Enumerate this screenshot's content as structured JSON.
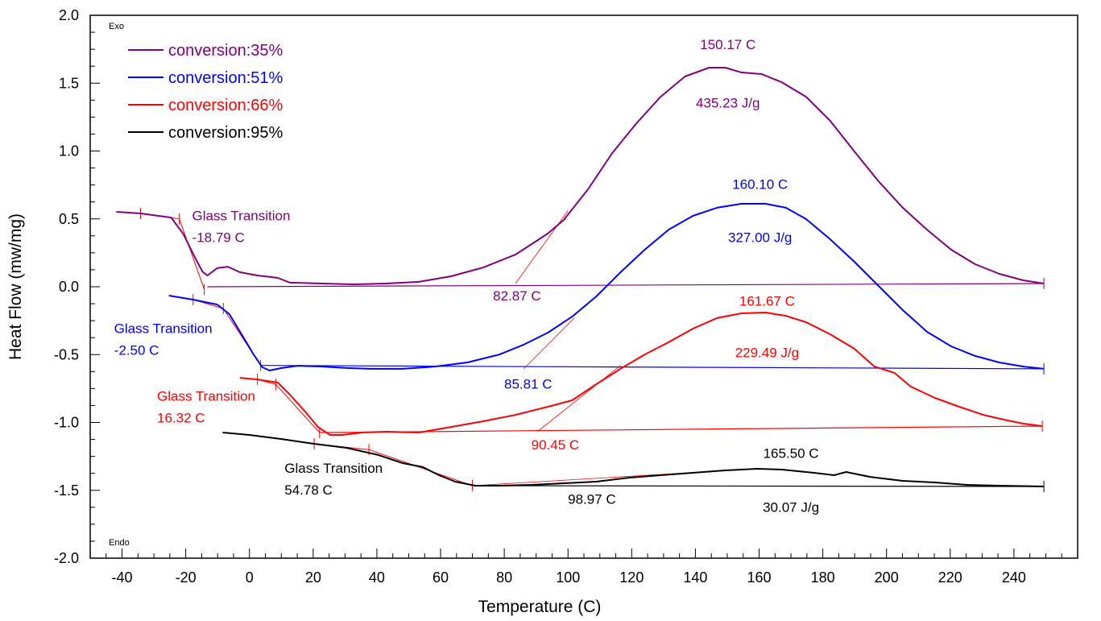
{
  "chart_data": {
    "type": "line",
    "title": "",
    "xlabel": "Temperature (C)",
    "ylabel": "Heat Flow (mw/mg)",
    "xlim": [
      -50,
      260
    ],
    "ylim": [
      -2.0,
      2.0
    ],
    "x_ticks": [
      -40,
      -20,
      0,
      20,
      40,
      60,
      80,
      100,
      120,
      140,
      160,
      180,
      200,
      220,
      240
    ],
    "x_tick_labels": [
      "-40",
      "-20",
      "0",
      "20",
      "40",
      "60",
      "80",
      "100",
      "120",
      "140",
      "160",
      "180",
      "200",
      "220",
      "240"
    ],
    "x_minor_step": 5,
    "y_ticks": [
      2.0,
      1.5,
      1.0,
      0.5,
      0.0,
      -0.5,
      -1.0,
      -1.5,
      -2.0
    ],
    "y_tick_labels": [
      "2.0",
      "1.5",
      "1.0",
      "0.5",
      "0.0",
      "-0.5",
      "-1.0",
      "-1.5",
      "-2.0"
    ],
    "y_minor_step": 0.125,
    "grid": false,
    "corner_notes": {
      "top": "Exo",
      "bottom": "Endo"
    },
    "legend": {
      "placement": "top-left",
      "entries": [
        {
          "label": "conversion:35%",
          "color": "#800080"
        },
        {
          "label": "conversion:51%",
          "color": "#0000ff"
        },
        {
          "label": "conversion:66%",
          "color": "#ff0000"
        },
        {
          "label": "conversion:95%",
          "color": "#000000"
        }
      ]
    },
    "series": [
      {
        "name": "conversion:35%",
        "color": "#800080",
        "x": [
          -41.8,
          -34.2,
          -24.6,
          -20.8,
          -17.0,
          -14.7,
          -13.2,
          -10.1,
          -6.8,
          -3.0,
          2.5,
          8.9,
          12.7,
          22.8,
          32.9,
          43.0,
          53.2,
          63.3,
          73.4,
          83.5,
          93.7,
          98.7,
          106.3,
          113.9,
          121.5,
          129.1,
          136.7,
          144.3,
          149.4,
          154.4,
          160.8,
          167.1,
          174.7,
          182.3,
          189.9,
          197.5,
          205.1,
          212.7,
          220.3,
          227.8,
          235.4,
          243.0,
          249.4
        ],
        "y": [
          0.552,
          0.54,
          0.51,
          0.39,
          0.21,
          0.11,
          0.083,
          0.137,
          0.148,
          0.107,
          0.083,
          0.065,
          0.03,
          0.024,
          0.018,
          0.024,
          0.036,
          0.077,
          0.142,
          0.237,
          0.392,
          0.493,
          0.718,
          0.985,
          1.205,
          1.4,
          1.549,
          1.614,
          1.614,
          1.579,
          1.567,
          1.507,
          1.4,
          1.223,
          0.997,
          0.777,
          0.582,
          0.421,
          0.273,
          0.166,
          0.095,
          0.047,
          0.024
        ],
        "baseline": {
          "x": [
            -13.2,
            249.4
          ],
          "y": [
            0.0,
            0.024
          ]
        },
        "onset_tangent": {
          "x": [
            83.5,
            100.0
          ],
          "y": [
            0.024,
            0.56
          ]
        },
        "tg_tangents": {
          "x": [
            -34.2,
            -22.0,
            -14.2
          ],
          "y": [
            0.54,
            0.5,
            -0.02
          ]
        },
        "annotations": [
          {
            "text": "Glass Transition",
            "x": -18.0,
            "y": 0.49,
            "anchor": "start"
          },
          {
            "text": "-18.79 C",
            "x": -18.0,
            "y": 0.33,
            "anchor": "start"
          },
          {
            "text": "82.87 C",
            "x": 84.0,
            "y": -0.1,
            "anchor": "middle"
          },
          {
            "text": "150.17 C",
            "x": 150.2,
            "y": 1.75,
            "anchor": "middle"
          },
          {
            "text": "435.23 J/g",
            "x": 150.2,
            "y": 1.32,
            "anchor": "middle"
          }
        ]
      },
      {
        "name": "conversion:51%",
        "color": "#0000ff",
        "x": [
          -25.3,
          -17.7,
          -10.1,
          -6.3,
          -2.5,
          1.3,
          4.0,
          6.3,
          10.1,
          15.2,
          22.8,
          30.4,
          38.0,
          48.1,
          58.2,
          68.4,
          78.5,
          86.1,
          93.7,
          101.3,
          108.9,
          116.5,
          124.1,
          131.6,
          139.2,
          146.8,
          154.4,
          162.0,
          168.4,
          174.7,
          182.3,
          189.9,
          197.5,
          205.1,
          212.7,
          220.3,
          227.8,
          235.4,
          243.0,
          249.4
        ],
        "y": [
          -0.065,
          -0.095,
          -0.131,
          -0.202,
          -0.35,
          -0.499,
          -0.593,
          -0.617,
          -0.599,
          -0.582,
          -0.588,
          -0.599,
          -0.605,
          -0.605,
          -0.588,
          -0.558,
          -0.499,
          -0.427,
          -0.338,
          -0.22,
          -0.071,
          0.107,
          0.273,
          0.421,
          0.522,
          0.582,
          0.611,
          0.611,
          0.582,
          0.499,
          0.35,
          0.184,
          0.006,
          -0.172,
          -0.332,
          -0.439,
          -0.51,
          -0.558,
          -0.588,
          -0.605
        ],
        "baseline": {
          "x": [
            3.5,
            249.4
          ],
          "y": [
            -0.58,
            -0.605
          ]
        },
        "onset_tangent": {
          "x": [
            86.1,
            102.0
          ],
          "y": [
            -0.605,
            -0.23
          ]
        },
        "tg_tangents": {
          "x": [
            -17.7,
            -8.2,
            3.5
          ],
          "y": [
            -0.095,
            -0.16,
            -0.58
          ]
        },
        "annotations": [
          {
            "text": "Glass Transition",
            "x": -42.5,
            "y": -0.34,
            "anchor": "start"
          },
          {
            "text": "-2.50 C",
            "x": -42.5,
            "y": -0.5,
            "anchor": "start"
          },
          {
            "text": "85.81 C",
            "x": 87.5,
            "y": -0.75,
            "anchor": "middle"
          },
          {
            "text": "160.10 C",
            "x": 160.3,
            "y": 0.72,
            "anchor": "middle"
          },
          {
            "text": "327.00 J/g",
            "x": 160.3,
            "y": 0.33,
            "anchor": "middle"
          }
        ]
      },
      {
        "name": "conversion:66%",
        "color": "#ff0000",
        "x": [
          -3.0,
          2.5,
          8.9,
          12.7,
          17.7,
          21.5,
          25.3,
          29.1,
          35.4,
          43.0,
          53.2,
          63.3,
          73.4,
          83.5,
          93.7,
          101.3,
          108.9,
          116.5,
          124.1,
          131.6,
          139.2,
          146.8,
          154.4,
          162.0,
          168.4,
          174.7,
          182.3,
          189.9,
          196.2,
          202.5,
          207.6,
          215.2,
          222.8,
          230.4,
          238.0,
          243.0,
          248.9
        ],
        "y": [
          -0.671,
          -0.683,
          -0.706,
          -0.795,
          -0.926,
          -1.033,
          -1.092,
          -1.092,
          -1.074,
          -1.068,
          -1.074,
          -1.033,
          -0.991,
          -0.944,
          -0.884,
          -0.837,
          -0.718,
          -0.605,
          -0.499,
          -0.409,
          -0.309,
          -0.231,
          -0.196,
          -0.19,
          -0.214,
          -0.261,
          -0.35,
          -0.457,
          -0.588,
          -0.635,
          -0.736,
          -0.819,
          -0.884,
          -0.944,
          -0.985,
          -1.009,
          -1.027
        ],
        "baseline": {
          "x": [
            22.0,
            248.9
          ],
          "y": [
            -1.075,
            -1.027
          ]
        },
        "onset_tangent": {
          "x": [
            90.5,
            116.5
          ],
          "y": [
            -1.065,
            -0.58
          ]
        },
        "tg_tangents": {
          "x": [
            2.5,
            8.3,
            22.0
          ],
          "y": [
            -0.683,
            -0.72,
            -1.075
          ]
        },
        "annotations": [
          {
            "text": "Glass Transition",
            "x": -29.0,
            "y": -0.84,
            "anchor": "start"
          },
          {
            "text": "16.32 C",
            "x": -29.0,
            "y": -1.0,
            "anchor": "start"
          },
          {
            "text": "90.45 C",
            "x": 96.0,
            "y": -1.2,
            "anchor": "middle"
          },
          {
            "text": "161.67 C",
            "x": 162.5,
            "y": -0.14,
            "anchor": "middle"
          },
          {
            "text": "229.49 J/g",
            "x": 162.5,
            "y": -0.52,
            "anchor": "middle"
          }
        ]
      },
      {
        "name": "conversion:95%",
        "color": "#000000",
        "x": [
          -8.4,
          0.0,
          10.1,
          20.3,
          30.4,
          40.5,
          48.1,
          54.4,
          59.5,
          64.6,
          70.9,
          78.5,
          88.6,
          98.7,
          108.9,
          119.0,
          129.1,
          139.2,
          149.4,
          159.5,
          167.1,
          177.2,
          183.5,
          187.3,
          194.9,
          205.1,
          215.2,
          225.3,
          235.4,
          249.4
        ],
        "y": [
          -1.074,
          -1.092,
          -1.122,
          -1.157,
          -1.187,
          -1.24,
          -1.3,
          -1.329,
          -1.389,
          -1.436,
          -1.466,
          -1.466,
          -1.46,
          -1.448,
          -1.436,
          -1.407,
          -1.389,
          -1.371,
          -1.353,
          -1.341,
          -1.347,
          -1.371,
          -1.389,
          -1.365,
          -1.401,
          -1.43,
          -1.442,
          -1.46,
          -1.466,
          -1.472
        ],
        "baseline": {
          "x": [
            70.0,
            249.4
          ],
          "y": [
            -1.466,
            -1.472
          ]
        },
        "onset_tangent": {
          "x": [
            70.0,
            160.0
          ],
          "y": [
            -1.466,
            -1.34
          ]
        },
        "tg_tangents": {
          "x": [
            20.3,
            37.5,
            70.0
          ],
          "y": [
            -1.157,
            -1.2,
            -1.466
          ]
        },
        "annotations": [
          {
            "text": "Glass Transition",
            "x": 11.0,
            "y": -1.37,
            "anchor": "start"
          },
          {
            "text": "54.78 C",
            "x": 11.0,
            "y": -1.53,
            "anchor": "start"
          },
          {
            "text": "98.97 C",
            "x": 107.5,
            "y": -1.6,
            "anchor": "middle"
          },
          {
            "text": "165.50 C",
            "x": 170.0,
            "y": -1.26,
            "anchor": "middle"
          },
          {
            "text": "30.07 J/g",
            "x": 170.0,
            "y": -1.66,
            "anchor": "middle"
          }
        ]
      }
    ]
  }
}
